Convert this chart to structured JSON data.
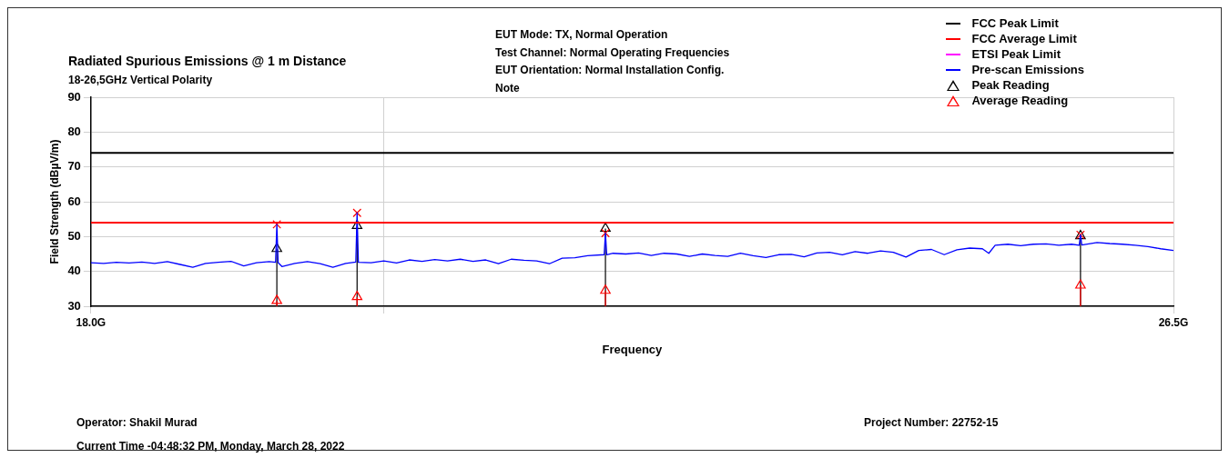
{
  "chart_data": {
    "type": "line",
    "title": "Radiated Spurious Emissions @ 1 m Distance",
    "subtitle": "18-26,5GHz Vertical Polarity",
    "xlabel": "Frequency",
    "ylabel": "Field Strength (dBµV/m)",
    "xlim": [
      18,
      26.5
    ],
    "xticks": [
      {
        "value": 18,
        "label": "18.0G"
      },
      {
        "value": 20.3,
        "label": null
      },
      {
        "value": 26.5,
        "label": "26.5G"
      }
    ],
    "ylim": [
      30,
      90
    ],
    "yticks": [
      30,
      40,
      50,
      60,
      70,
      80,
      90
    ],
    "grid": true,
    "legend": "top right",
    "series": [
      {
        "name": "FCC Peak Limit",
        "color": "#000000",
        "x": [
          18,
          26.5
        ],
        "values": [
          74,
          74
        ]
      },
      {
        "name": "FCC Average Limit",
        "color": "#ff0000",
        "x": [
          18,
          26.5
        ],
        "values": [
          54,
          54
        ]
      },
      {
        "name": "ETSI Peak Limit",
        "color": "#ff00ff"
      },
      {
        "name": "Pre-scan Emissions",
        "color": "#0000ff",
        "x": [
          18.0,
          18.1,
          18.2,
          18.3,
          18.4,
          18.5,
          18.6,
          18.7,
          18.8,
          18.9,
          19.0,
          19.1,
          19.2,
          19.3,
          19.4,
          19.45,
          19.46,
          19.47,
          19.5,
          19.6,
          19.7,
          19.8,
          19.9,
          20.0,
          20.08,
          20.09,
          20.1,
          20.2,
          20.3,
          20.4,
          20.5,
          20.6,
          20.7,
          20.8,
          20.9,
          21.0,
          21.1,
          21.2,
          21.3,
          21.4,
          21.5,
          21.6,
          21.7,
          21.8,
          21.9,
          22.03,
          22.04,
          22.05,
          22.1,
          22.2,
          22.3,
          22.4,
          22.5,
          22.6,
          22.7,
          22.8,
          22.9,
          23.0,
          23.1,
          23.2,
          23.3,
          23.4,
          23.5,
          23.6,
          23.7,
          23.8,
          23.9,
          24.0,
          24.1,
          24.2,
          24.3,
          24.4,
          24.5,
          24.6,
          24.7,
          24.8,
          24.9,
          25.0,
          25.05,
          25.1,
          25.2,
          25.3,
          25.4,
          25.5,
          25.6,
          25.7,
          25.76,
          25.77,
          25.78,
          25.9,
          26.0,
          26.1,
          26.2,
          26.3,
          26.4,
          26.5
        ],
        "values": [
          42.5,
          42.3,
          42.6,
          42.4,
          42.7,
          42.3,
          42.8,
          42.0,
          41.2,
          42.3,
          42.6,
          42.9,
          41.6,
          42.5,
          42.8,
          42.6,
          53.5,
          42.5,
          41.4,
          42.3,
          42.8,
          42.2,
          41.2,
          42.3,
          42.7,
          56.8,
          42.6,
          42.5,
          43.0,
          42.4,
          43.3,
          42.9,
          43.4,
          43.0,
          43.5,
          42.9,
          43.3,
          42.2,
          43.5,
          43.2,
          43.0,
          42.2,
          43.8,
          43.9,
          44.5,
          44.8,
          51.0,
          44.8,
          45.2,
          45.0,
          45.3,
          44.6,
          45.2,
          45.0,
          44.3,
          45.0,
          44.6,
          44.3,
          45.2,
          44.5,
          44.0,
          44.8,
          44.9,
          44.2,
          45.3,
          45.5,
          44.8,
          45.7,
          45.2,
          45.9,
          45.5,
          44.1,
          46.0,
          46.3,
          44.8,
          46.2,
          46.7,
          46.5,
          45.2,
          47.5,
          47.8,
          47.4,
          47.8,
          47.9,
          47.5,
          47.8,
          47.5,
          50.5,
          47.6,
          48.3,
          48.0,
          47.8,
          47.5,
          47.1,
          46.5,
          46.0
        ]
      },
      {
        "type": "scatter",
        "marker": "cross",
        "color": "#ff0000",
        "x": [
          19.46,
          20.09,
          22.04,
          25.77
        ],
        "values": [
          53.5,
          56.8,
          51,
          50.5
        ]
      },
      {
        "name": "Peak Reading",
        "type": "lollipop",
        "marker": "triangle",
        "color": "#000000",
        "x": [
          19.46,
          20.09,
          22.04,
          25.77
        ],
        "values": [
          46.5,
          53.1,
          52.3,
          50.2
        ]
      },
      {
        "name": "Average Reading",
        "type": "lollipop",
        "marker": "triangle",
        "color": "#ff0000",
        "x": [
          19.46,
          20.09,
          22.04,
          25.77
        ],
        "values": [
          31.6,
          32.7,
          34.5,
          36
        ]
      }
    ],
    "annotations": [
      "EUT Mode: TX, Normal Operation",
      "Test Channel: Normal Operating Frequencies",
      "EUT Orientation: Normal Installation Config.",
      "Note",
      "Operator: Shakil Murad",
      "Current Time -04:48:32 PM, Monday, March 28, 2022",
      "Project Number: 22752-15"
    ]
  }
}
